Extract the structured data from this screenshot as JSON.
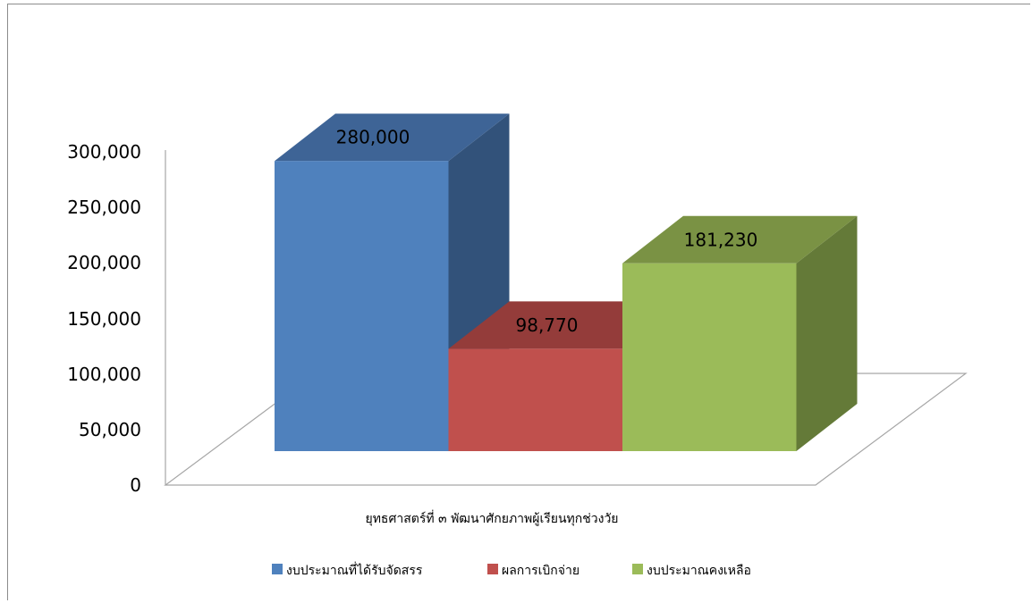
{
  "chart_data": {
    "type": "bar",
    "style": "3d-column",
    "categories": [
      "ยุทธศาสตร์ที่ ๓ พัฒนาศักยภาพผู้เรียนทุกช่วงวัย"
    ],
    "series": [
      {
        "name": "งบประมาณที่ได้รับจัดสรร",
        "values": [
          280000
        ],
        "label": "280,000",
        "color": "#4f81bd",
        "side_color": "#32527a",
        "top_color": "#3e6496"
      },
      {
        "name": "ผลการเบิกจ่าย",
        "values": [
          98770
        ],
        "label": "98,770",
        "color": "#c0504d",
        "side_color": "#7d3331",
        "top_color": "#943c3a"
      },
      {
        "name": "งบประมาณคงเหลือ",
        "values": [
          181230
        ],
        "label": "181,230",
        "color": "#9bbb59",
        "side_color": "#647a38",
        "top_color": "#7a9244"
      }
    ],
    "ylim": [
      0,
      300000
    ],
    "yticks": [
      0,
      50000,
      100000,
      150000,
      200000,
      250000,
      300000
    ],
    "ytick_labels": [
      "0",
      "50,000",
      "100,000",
      "150,000",
      "200,000",
      "250,000",
      "300,000"
    ],
    "xlabel": "",
    "ylabel": "",
    "title": "",
    "grid": false,
    "legend_position": "bottom"
  }
}
